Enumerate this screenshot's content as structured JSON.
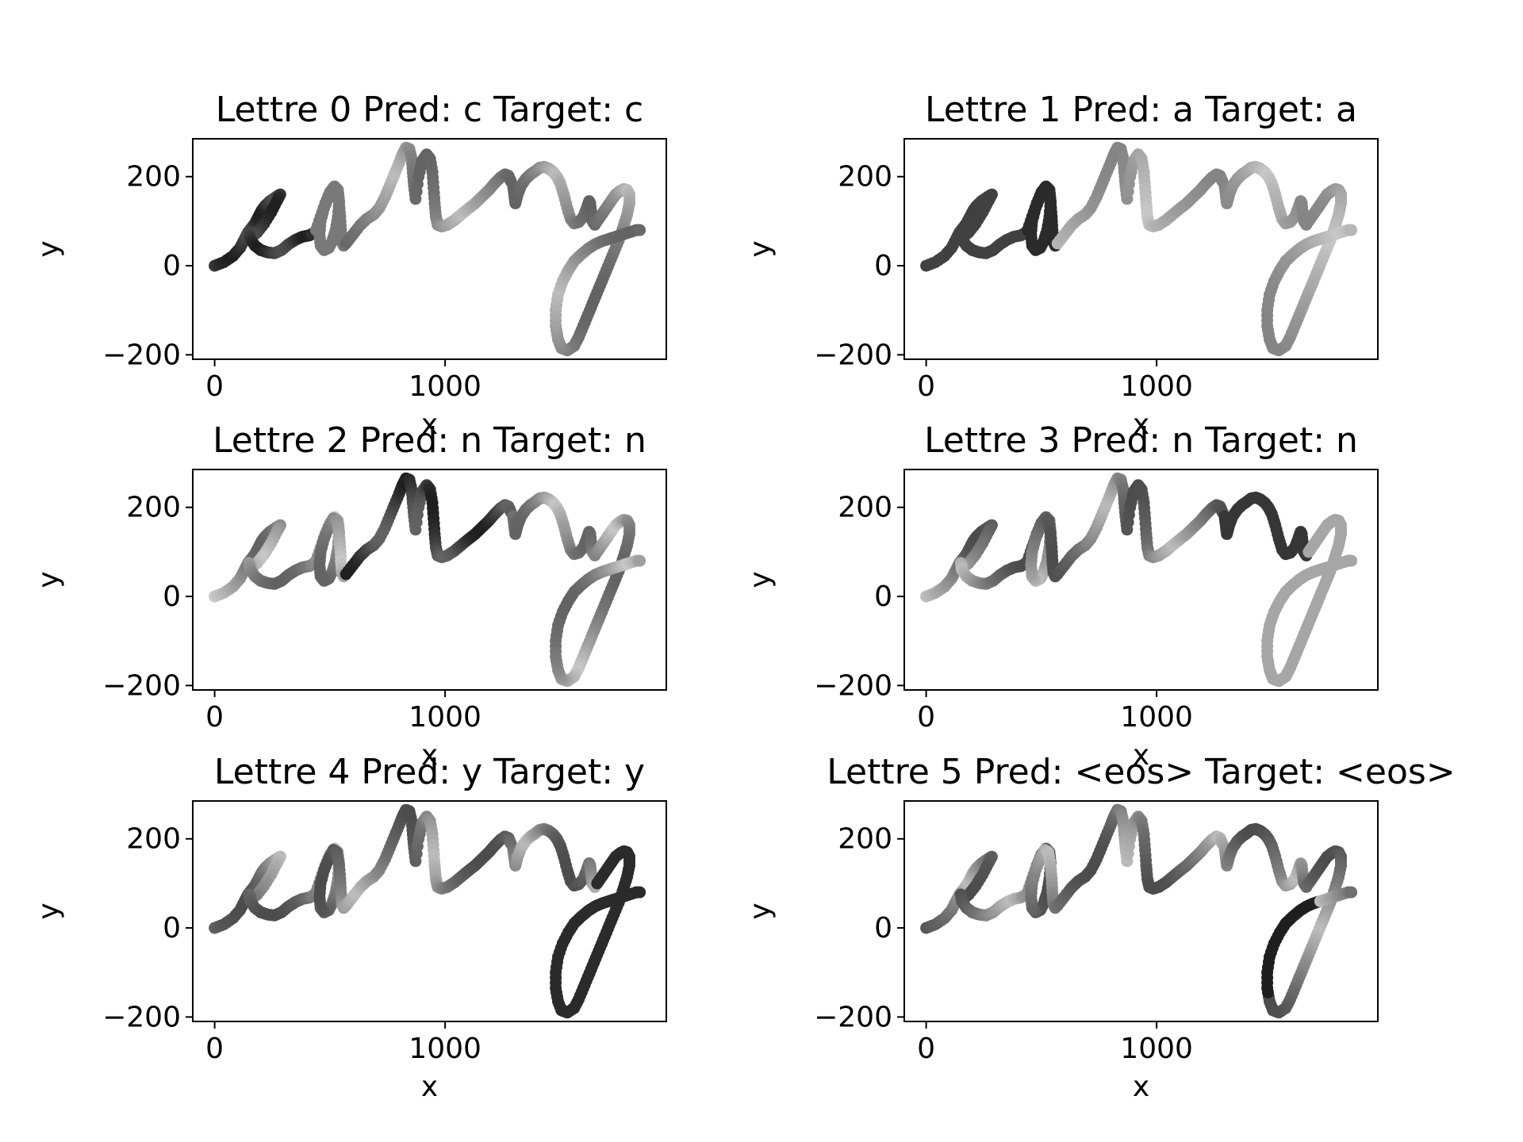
{
  "figure": {
    "background": "#ffffff"
  },
  "chart_data": [
    {
      "type": "scatter",
      "title": "Lettre 0 Pred: c Target: c",
      "xlabel": "x",
      "ylabel": "y",
      "xticks": [
        "0",
        "1000"
      ],
      "yticks": [
        "200",
        "0",
        "−200"
      ],
      "xlim": [
        -95,
        1960
      ],
      "ylim": [
        -210,
        285
      ],
      "grid": false,
      "colormap": "greys",
      "highlight": "letter-1"
    },
    {
      "type": "scatter",
      "title": "Lettre 1 Pred: a Target: a",
      "xlabel": "x",
      "ylabel": "y",
      "xticks": [
        "0",
        "1000"
      ],
      "yticks": [
        "200",
        "0",
        "−200"
      ],
      "xlim": [
        -95,
        1960
      ],
      "ylim": [
        -210,
        285
      ],
      "grid": false,
      "colormap": "greys",
      "highlight": "letter-2"
    },
    {
      "type": "scatter",
      "title": "Lettre 2 Pred: n Target: n",
      "xlabel": "x",
      "ylabel": "y",
      "xticks": [
        "0",
        "1000"
      ],
      "yticks": [
        "200",
        "0",
        "−200"
      ],
      "xlim": [
        -95,
        1960
      ],
      "ylim": [
        -210,
        285
      ],
      "grid": false,
      "colormap": "greys",
      "highlight": "letter-3"
    },
    {
      "type": "scatter",
      "title": "Lettre 3 Pred: n Target: n",
      "xlabel": "x",
      "ylabel": "y",
      "xticks": [
        "0",
        "1000"
      ],
      "yticks": [
        "200",
        "0",
        "−200"
      ],
      "xlim": [
        -95,
        1960
      ],
      "ylim": [
        -210,
        285
      ],
      "grid": false,
      "colormap": "greys",
      "highlight": "letter-4"
    },
    {
      "type": "scatter",
      "title": "Lettre 4 Pred: y Target: y",
      "xlabel": "x",
      "ylabel": "y",
      "xticks": [
        "0",
        "1000"
      ],
      "yticks": [
        "200",
        "0",
        "−200"
      ],
      "xlim": [
        -95,
        1960
      ],
      "ylim": [
        -210,
        285
      ],
      "grid": false,
      "colormap": "greys",
      "highlight": "letter-5"
    },
    {
      "type": "scatter",
      "title": "Lettre 5 Pred: <eos> Target: <eos>",
      "xlabel": "x",
      "ylabel": "y",
      "xticks": [
        "0",
        "1000"
      ],
      "yticks": [
        "200",
        "0",
        "−200"
      ],
      "xlim": [
        -95,
        1960
      ],
      "ylim": [
        -210,
        285
      ],
      "grid": false,
      "colormap": "greys",
      "highlight": "letter-6"
    }
  ],
  "strokes": [
    [
      [
        0,
        0
      ],
      [
        40,
        8
      ],
      [
        80,
        22
      ],
      [
        110,
        40
      ],
      [
        130,
        60
      ],
      [
        145,
        75
      ],
      [
        160,
        85
      ],
      [
        175,
        95
      ],
      [
        190,
        110
      ],
      [
        205,
        125
      ],
      [
        220,
        135
      ],
      [
        240,
        145
      ],
      [
        260,
        152
      ],
      [
        275,
        157
      ],
      [
        285,
        160
      ],
      [
        270,
        145
      ],
      [
        245,
        120
      ],
      [
        215,
        95
      ],
      [
        185,
        75
      ],
      [
        160,
        65
      ],
      [
        150,
        75
      ],
      [
        155,
        60
      ],
      [
        175,
        45
      ],
      [
        200,
        35
      ],
      [
        230,
        30
      ],
      [
        260,
        28
      ],
      [
        290,
        35
      ],
      [
        320,
        48
      ],
      [
        350,
        58
      ],
      [
        380,
        65
      ],
      [
        410,
        68
      ],
      [
        425,
        72
      ]
    ],
    [
      [
        440,
        80
      ],
      [
        460,
        110
      ],
      [
        480,
        140
      ],
      [
        500,
        165
      ],
      [
        520,
        178
      ],
      [
        535,
        170
      ],
      [
        540,
        145
      ],
      [
        535,
        110
      ],
      [
        525,
        80
      ],
      [
        510,
        55
      ],
      [
        495,
        40
      ],
      [
        475,
        35
      ],
      [
        460,
        45
      ],
      [
        455,
        70
      ],
      [
        460,
        100
      ],
      [
        475,
        130
      ],
      [
        495,
        155
      ],
      [
        515,
        175
      ],
      [
        530,
        170
      ],
      [
        540,
        140
      ],
      [
        545,
        110
      ],
      [
        548,
        80
      ],
      [
        552,
        55
      ],
      [
        560,
        45
      ]
    ],
    [
      [
        570,
        50
      ],
      [
        600,
        70
      ],
      [
        630,
        90
      ],
      [
        660,
        105
      ],
      [
        690,
        115
      ],
      [
        715,
        130
      ],
      [
        740,
        155
      ],
      [
        760,
        180
      ],
      [
        780,
        205
      ],
      [
        800,
        230
      ],
      [
        815,
        250
      ],
      [
        830,
        265
      ],
      [
        845,
        262
      ],
      [
        855,
        240
      ],
      [
        860,
        210
      ],
      [
        865,
        180
      ],
      [
        872,
        150
      ],
      [
        885,
        200
      ],
      [
        900,
        235
      ],
      [
        920,
        250
      ],
      [
        935,
        240
      ],
      [
        945,
        210
      ],
      [
        950,
        175
      ],
      [
        955,
        140
      ],
      [
        960,
        110
      ],
      [
        968,
        92
      ],
      [
        985,
        88
      ],
      [
        1010,
        92
      ],
      [
        1040,
        102
      ],
      [
        1070,
        115
      ],
      [
        1100,
        128
      ],
      [
        1130,
        140
      ],
      [
        1160,
        155
      ],
      [
        1190,
        170
      ],
      [
        1215,
        185
      ],
      [
        1240,
        198
      ],
      [
        1260,
        205
      ],
      [
        1275,
        202
      ],
      [
        1285,
        190
      ]
    ],
    [
      [
        1295,
        180
      ],
      [
        1300,
        160
      ],
      [
        1305,
        140
      ],
      [
        1315,
        160
      ],
      [
        1330,
        180
      ],
      [
        1350,
        195
      ],
      [
        1370,
        205
      ],
      [
        1390,
        212
      ],
      [
        1410,
        220
      ],
      [
        1430,
        222
      ],
      [
        1450,
        218
      ],
      [
        1470,
        210
      ],
      [
        1485,
        200
      ],
      [
        1500,
        185
      ],
      [
        1515,
        160
      ],
      [
        1530,
        130
      ],
      [
        1545,
        105
      ],
      [
        1560,
        95
      ],
      [
        1580,
        98
      ],
      [
        1600,
        110
      ],
      [
        1615,
        130
      ],
      [
        1625,
        145
      ],
      [
        1630,
        140
      ],
      [
        1635,
        115
      ],
      [
        1640,
        100
      ],
      [
        1650,
        92
      ]
    ],
    [
      [
        1660,
        100
      ],
      [
        1680,
        115
      ],
      [
        1700,
        130
      ],
      [
        1720,
        145
      ],
      [
        1740,
        160
      ],
      [
        1760,
        168
      ],
      [
        1775,
        172
      ],
      [
        1790,
        170
      ],
      [
        1800,
        160
      ],
      [
        1800,
        140
      ],
      [
        1790,
        115
      ],
      [
        1775,
        90
      ],
      [
        1760,
        65
      ],
      [
        1740,
        40
      ],
      [
        1720,
        15
      ],
      [
        1700,
        -10
      ],
      [
        1680,
        -35
      ],
      [
        1660,
        -60
      ],
      [
        1640,
        -85
      ],
      [
        1620,
        -110
      ],
      [
        1600,
        -135
      ],
      [
        1580,
        -160
      ],
      [
        1560,
        -180
      ],
      [
        1530,
        -190
      ],
      [
        1505,
        -185
      ],
      [
        1490,
        -165
      ],
      [
        1480,
        -135
      ],
      [
        1480,
        -100
      ],
      [
        1490,
        -65
      ],
      [
        1510,
        -35
      ],
      [
        1535,
        -10
      ],
      [
        1560,
        10
      ],
      [
        1590,
        25
      ],
      [
        1620,
        38
      ],
      [
        1650,
        48
      ],
      [
        1680,
        55
      ],
      [
        1710,
        60
      ],
      [
        1740,
        65
      ],
      [
        1770,
        70
      ],
      [
        1800,
        75
      ],
      [
        1830,
        80
      ],
      [
        1845,
        80
      ]
    ]
  ]
}
